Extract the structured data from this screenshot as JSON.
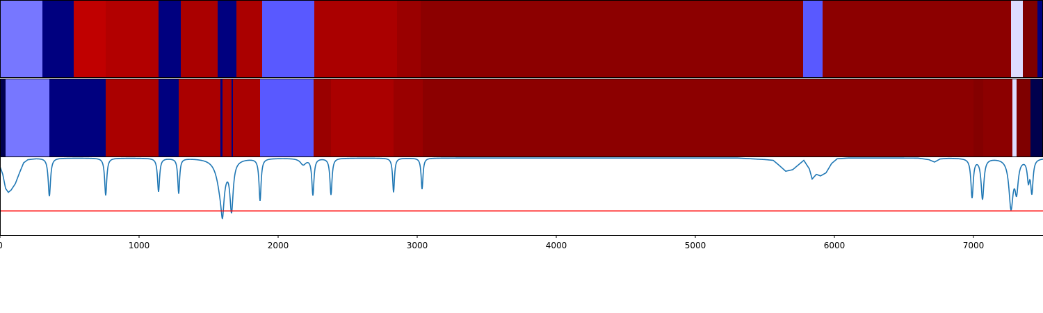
{
  "chart_data": [
    {
      "type": "heatmap",
      "panel": "top",
      "xlim": [
        0,
        7500
      ],
      "segments": [
        {
          "x0": 0,
          "x1": 305,
          "color": "#7777ff"
        },
        {
          "x0": 305,
          "x1": 530,
          "color": "#00007f"
        },
        {
          "x0": 530,
          "x1": 760,
          "color": "#c00000"
        },
        {
          "x0": 760,
          "x1": 1140,
          "color": "#b20000"
        },
        {
          "x0": 1140,
          "x1": 1300,
          "color": "#00007f"
        },
        {
          "x0": 1300,
          "x1": 1565,
          "color": "#aa0000"
        },
        {
          "x0": 1565,
          "x1": 1700,
          "color": "#00007f"
        },
        {
          "x0": 1700,
          "x1": 1885,
          "color": "#aa0000"
        },
        {
          "x0": 1885,
          "x1": 2260,
          "color": "#5959ff"
        },
        {
          "x0": 2260,
          "x1": 2855,
          "color": "#aa0000"
        },
        {
          "x0": 2855,
          "x1": 3025,
          "color": "#9a0000"
        },
        {
          "x0": 3025,
          "x1": 5775,
          "color": "#8c0000"
        },
        {
          "x0": 5775,
          "x1": 5915,
          "color": "#5959ff"
        },
        {
          "x0": 5915,
          "x1": 7270,
          "color": "#8c0000"
        },
        {
          "x0": 7270,
          "x1": 7355,
          "color": "#ddddff"
        },
        {
          "x0": 7355,
          "x1": 7460,
          "color": "#7f0000"
        },
        {
          "x0": 7460,
          "x1": 7500,
          "color": "#00007f"
        }
      ]
    },
    {
      "type": "heatmap",
      "panel": "middle",
      "xlim": [
        0,
        7500
      ],
      "segments": [
        {
          "x0": 0,
          "x1": 40,
          "color": "#00004d"
        },
        {
          "x0": 40,
          "x1": 355,
          "color": "#7777ff"
        },
        {
          "x0": 355,
          "x1": 760,
          "color": "#00007f"
        },
        {
          "x0": 760,
          "x1": 1140,
          "color": "#aa0000"
        },
        {
          "x0": 1140,
          "x1": 1285,
          "color": "#00007f"
        },
        {
          "x0": 1285,
          "x1": 1585,
          "color": "#aa0000"
        },
        {
          "x0": 1585,
          "x1": 1600,
          "color": "#00007f"
        },
        {
          "x0": 1600,
          "x1": 1665,
          "color": "#aa0000"
        },
        {
          "x0": 1665,
          "x1": 1675,
          "color": "#00007f"
        },
        {
          "x0": 1675,
          "x1": 1870,
          "color": "#aa0000"
        },
        {
          "x0": 1870,
          "x1": 2255,
          "color": "#5959ff"
        },
        {
          "x0": 2255,
          "x1": 2380,
          "color": "#9a0000"
        },
        {
          "x0": 2380,
          "x1": 2830,
          "color": "#aa0000"
        },
        {
          "x0": 2830,
          "x1": 3040,
          "color": "#9a0000"
        },
        {
          "x0": 3040,
          "x1": 7000,
          "color": "#8c0000"
        },
        {
          "x0": 7000,
          "x1": 7070,
          "color": "#840000"
        },
        {
          "x0": 7070,
          "x1": 7280,
          "color": "#8c0000"
        },
        {
          "x0": 7280,
          "x1": 7310,
          "color": "#ddddff"
        },
        {
          "x0": 7310,
          "x1": 7410,
          "color": "#7f0000"
        },
        {
          "x0": 7410,
          "x1": 7500,
          "color": "#00004d"
        }
      ]
    },
    {
      "type": "line",
      "panel": "bottom",
      "xlim": [
        0,
        7500
      ],
      "ylim": [
        0,
        1
      ],
      "x_ticks": [
        0,
        1000,
        2000,
        3000,
        4000,
        5000,
        6000,
        7000
      ],
      "x_tick_labels": [
        "0",
        "1000",
        "2000",
        "3000",
        "4000",
        "5000",
        "6000",
        "7000"
      ],
      "threshold": 0.31,
      "threshold_color": "#ff0000",
      "line_color": "#1f77b4",
      "baseline": 0.99,
      "base_points": [
        [
          0,
          0.88
        ],
        [
          20,
          0.78
        ],
        [
          40,
          0.6
        ],
        [
          60,
          0.55
        ],
        [
          80,
          0.58
        ],
        [
          110,
          0.66
        ],
        [
          140,
          0.8
        ],
        [
          170,
          0.93
        ],
        [
          200,
          0.97
        ],
        [
          260,
          0.985
        ],
        [
          320,
          0.99
        ],
        [
          5300,
          0.99
        ],
        [
          5400,
          0.98
        ],
        [
          5500,
          0.97
        ],
        [
          5560,
          0.96
        ],
        [
          5600,
          0.9
        ],
        [
          5650,
          0.82
        ],
        [
          5700,
          0.84
        ],
        [
          5740,
          0.9
        ],
        [
          5780,
          0.96
        ],
        [
          5820,
          0.85
        ],
        [
          5840,
          0.72
        ],
        [
          5870,
          0.78
        ],
        [
          5900,
          0.76
        ],
        [
          5940,
          0.8
        ],
        [
          5980,
          0.92
        ],
        [
          6020,
          0.98
        ],
        [
          6100,
          0.99
        ],
        [
          6600,
          0.99
        ],
        [
          6680,
          0.97
        ],
        [
          6720,
          0.94
        ],
        [
          6760,
          0.98
        ],
        [
          6820,
          0.99
        ],
        [
          7500,
          0.99
        ]
      ],
      "dips": [
        {
          "x": 355,
          "depth": 0.49,
          "w": 10
        },
        {
          "x": 760,
          "depth": 0.48,
          "w": 9
        },
        {
          "x": 1140,
          "depth": 0.43,
          "w": 9
        },
        {
          "x": 1285,
          "depth": 0.45,
          "w": 8
        },
        {
          "x": 1590,
          "depth": 0.42,
          "w": 35
        },
        {
          "x": 1600,
          "depth": 0.36,
          "w": 12
        },
        {
          "x": 1665,
          "depth": 0.62,
          "w": 14
        },
        {
          "x": 1870,
          "depth": 0.54,
          "w": 9
        },
        {
          "x": 2180,
          "depth": 0.08,
          "w": 25
        },
        {
          "x": 2250,
          "depth": 0.47,
          "w": 9
        },
        {
          "x": 2380,
          "depth": 0.47,
          "w": 9
        },
        {
          "x": 2830,
          "depth": 0.44,
          "w": 8
        },
        {
          "x": 3035,
          "depth": 0.4,
          "w": 8
        },
        {
          "x": 6990,
          "depth": 0.5,
          "w": 10
        },
        {
          "x": 7065,
          "depth": 0.52,
          "w": 12
        },
        {
          "x": 7270,
          "depth": 0.62,
          "w": 18
        },
        {
          "x": 7310,
          "depth": 0.38,
          "w": 14
        },
        {
          "x": 7395,
          "depth": 0.26,
          "w": 10
        },
        {
          "x": 7420,
          "depth": 0.42,
          "w": 10
        }
      ]
    }
  ]
}
